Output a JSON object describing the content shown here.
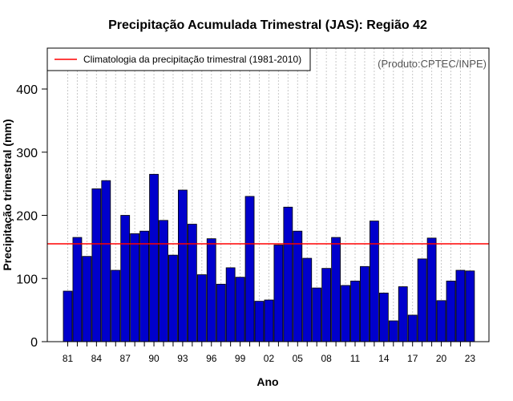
{
  "chart_data": {
    "type": "bar",
    "title": "Precipitação Acumulada Trimestral (JAS): Região 42",
    "xlabel": "Ano",
    "ylabel": "Precipitação trimestral (mm)",
    "credit": "(Produto:CPTEC/INPE)",
    "years": [
      "81",
      "82",
      "83",
      "84",
      "85",
      "86",
      "87",
      "88",
      "89",
      "90",
      "91",
      "92",
      "93",
      "94",
      "95",
      "96",
      "97",
      "98",
      "99",
      "00",
      "01",
      "02",
      "03",
      "04",
      "05",
      "06",
      "07",
      "08",
      "09",
      "10",
      "11",
      "12",
      "13",
      "14",
      "15",
      "16",
      "17",
      "18",
      "19",
      "20",
      "21",
      "22",
      "23"
    ],
    "values": [
      80,
      165,
      135,
      242,
      255,
      113,
      200,
      171,
      175,
      265,
      192,
      137,
      240,
      186,
      106,
      163,
      91,
      117,
      102,
      230,
      64,
      66,
      153,
      213,
      175,
      132,
      85,
      116,
      165,
      89,
      96,
      119,
      191,
      77,
      33,
      87,
      42,
      131,
      164,
      65,
      96,
      113,
      112
    ],
    "xtick_labels": [
      "81",
      "84",
      "87",
      "90",
      "93",
      "96",
      "99",
      "02",
      "05",
      "08",
      "11",
      "14",
      "17",
      "20",
      "23"
    ],
    "yticks": [
      0,
      100,
      200,
      300,
      400
    ],
    "ylim": [
      0,
      460
    ],
    "grid": "vertical dotted",
    "climatology": {
      "value": 155,
      "label": "Climatologia da precipitação trimestral (1981-2010)",
      "color": "#ff0000"
    },
    "bar_color": "#0000cc",
    "legend_position": "top-left"
  }
}
